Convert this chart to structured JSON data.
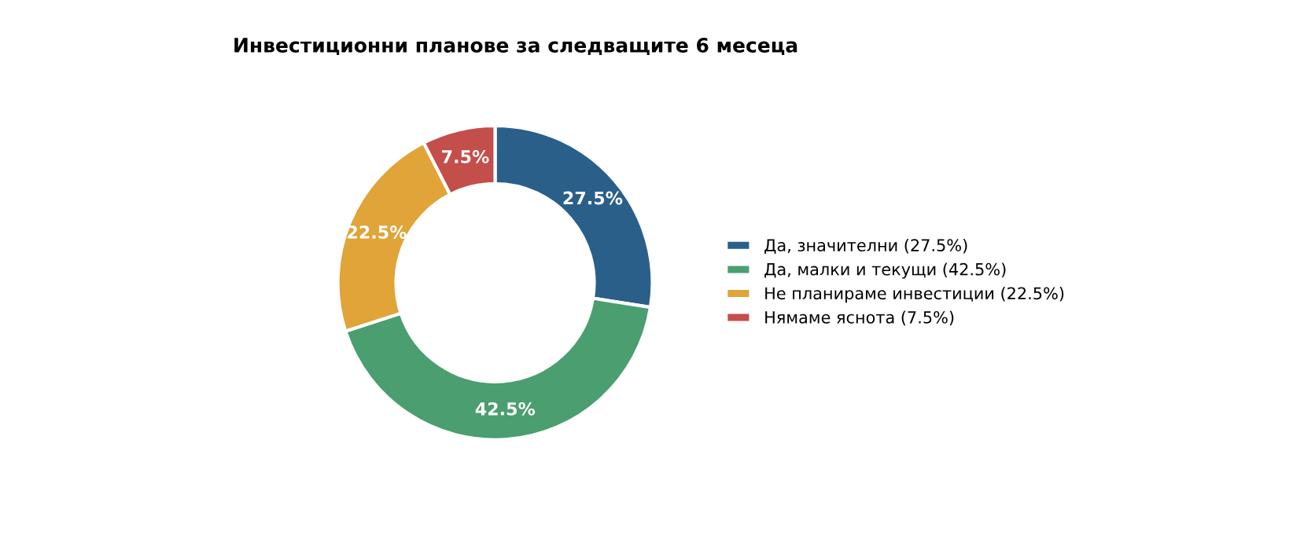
{
  "chart_data": {
    "type": "donut",
    "title": "Инвестиционни планове за следващите 6 месеца",
    "categories": [
      "Да, значителни (27.5%)",
      "Да, малки и текущи (42.5%)",
      "Не планираме инвестиции (22.5%)",
      "Нямаме яснота (7.5%)"
    ],
    "values": [
      27.5,
      42.5,
      22.5,
      7.5
    ],
    "colors": [
      "#2a5f8a",
      "#4a9e6f",
      "#e0a438",
      "#c44e4a"
    ],
    "value_labels": [
      "27.5%",
      "42.5%",
      "22.5%",
      "7.5%"
    ],
    "legend": "right"
  }
}
